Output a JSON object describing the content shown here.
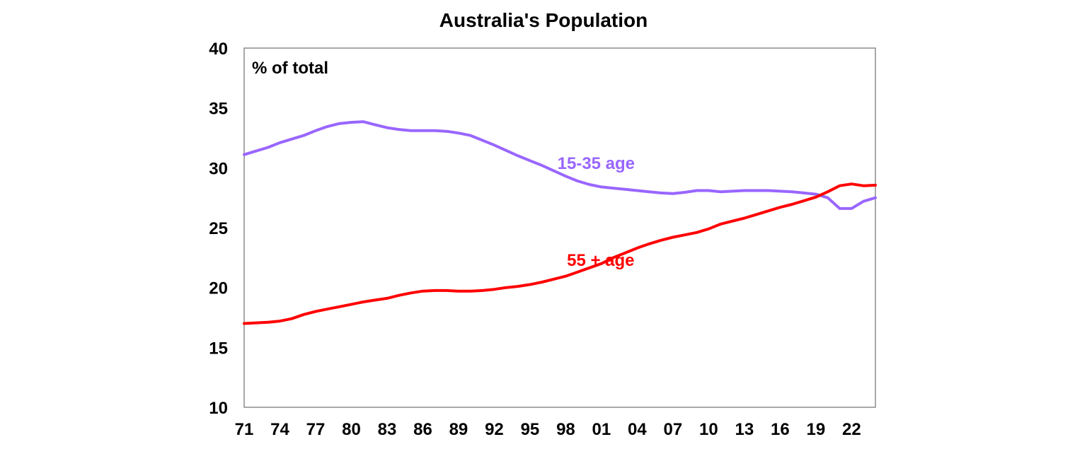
{
  "chart_data": {
    "type": "line",
    "title": "Australia's Population",
    "xlabel": "",
    "ylabel": "",
    "unit_label": "% of total",
    "ylim": [
      10,
      40
    ],
    "xlim": [
      1971,
      2024
    ],
    "yticks": [
      "10",
      "15",
      "20",
      "25",
      "30",
      "35",
      "40"
    ],
    "xticks": [
      {
        "year": 1971,
        "label": "71"
      },
      {
        "year": 1974,
        "label": "74"
      },
      {
        "year": 1977,
        "label": "77"
      },
      {
        "year": 1980,
        "label": "80"
      },
      {
        "year": 1983,
        "label": "83"
      },
      {
        "year": 1986,
        "label": "86"
      },
      {
        "year": 1989,
        "label": "89"
      },
      {
        "year": 1992,
        "label": "92"
      },
      {
        "year": 1995,
        "label": "95"
      },
      {
        "year": 1998,
        "label": "98"
      },
      {
        "year": 2001,
        "label": "01"
      },
      {
        "year": 2004,
        "label": "04"
      },
      {
        "year": 2007,
        "label": "07"
      },
      {
        "year": 2010,
        "label": "10"
      },
      {
        "year": 2013,
        "label": "13"
      },
      {
        "year": 2016,
        "label": "16"
      },
      {
        "year": 2019,
        "label": "19"
      },
      {
        "year": 2022,
        "label": "22"
      }
    ],
    "grid": false,
    "legend": "none",
    "x": [
      1971,
      1972,
      1973,
      1974,
      1975,
      1976,
      1977,
      1978,
      1979,
      1980,
      1981,
      1982,
      1983,
      1984,
      1985,
      1986,
      1987,
      1988,
      1989,
      1990,
      1991,
      1992,
      1993,
      1994,
      1995,
      1996,
      1997,
      1998,
      1999,
      2000,
      2001,
      2002,
      2003,
      2004,
      2005,
      2006,
      2007,
      2008,
      2009,
      2010,
      2011,
      2012,
      2013,
      2014,
      2015,
      2016,
      2017,
      2018,
      2019,
      2020,
      2021,
      2022,
      2023,
      2024
    ],
    "series": [
      {
        "name": "15-35 age",
        "color": "#9966ff",
        "values": [
          31.1,
          31.4,
          31.7,
          32.1,
          32.4,
          32.7,
          33.1,
          33.45,
          33.7,
          33.8,
          33.85,
          33.6,
          33.35,
          33.2,
          33.1,
          33.1,
          33.1,
          33.05,
          32.9,
          32.7,
          32.3,
          31.9,
          31.45,
          31.0,
          30.6,
          30.2,
          29.75,
          29.3,
          28.9,
          28.6,
          28.4,
          28.3,
          28.2,
          28.1,
          28.0,
          27.9,
          27.85,
          27.95,
          28.1,
          28.1,
          28.0,
          28.05,
          28.1,
          28.1,
          28.1,
          28.05,
          28.0,
          27.9,
          27.8,
          27.5,
          26.6,
          26.6,
          27.2,
          27.5
        ],
        "label_year": 1997.3,
        "label_value": 29.9
      },
      {
        "name": "55 + age",
        "color": "#ff0000",
        "values": [
          17.0,
          17.05,
          17.1,
          17.2,
          17.4,
          17.75,
          18.0,
          18.2,
          18.4,
          18.6,
          18.8,
          18.95,
          19.1,
          19.35,
          19.55,
          19.7,
          19.75,
          19.75,
          19.7,
          19.7,
          19.75,
          19.85,
          20.0,
          20.1,
          20.25,
          20.45,
          20.7,
          20.95,
          21.3,
          21.65,
          22.0,
          22.5,
          22.9,
          23.3,
          23.65,
          23.95,
          24.2,
          24.4,
          24.6,
          24.9,
          25.3,
          25.55,
          25.8,
          26.1,
          26.4,
          26.7,
          26.95,
          27.25,
          27.55,
          28.0,
          28.5,
          28.65,
          28.5,
          28.55
        ],
        "label_year": 1998.1,
        "label_value": 21.8
      }
    ]
  }
}
